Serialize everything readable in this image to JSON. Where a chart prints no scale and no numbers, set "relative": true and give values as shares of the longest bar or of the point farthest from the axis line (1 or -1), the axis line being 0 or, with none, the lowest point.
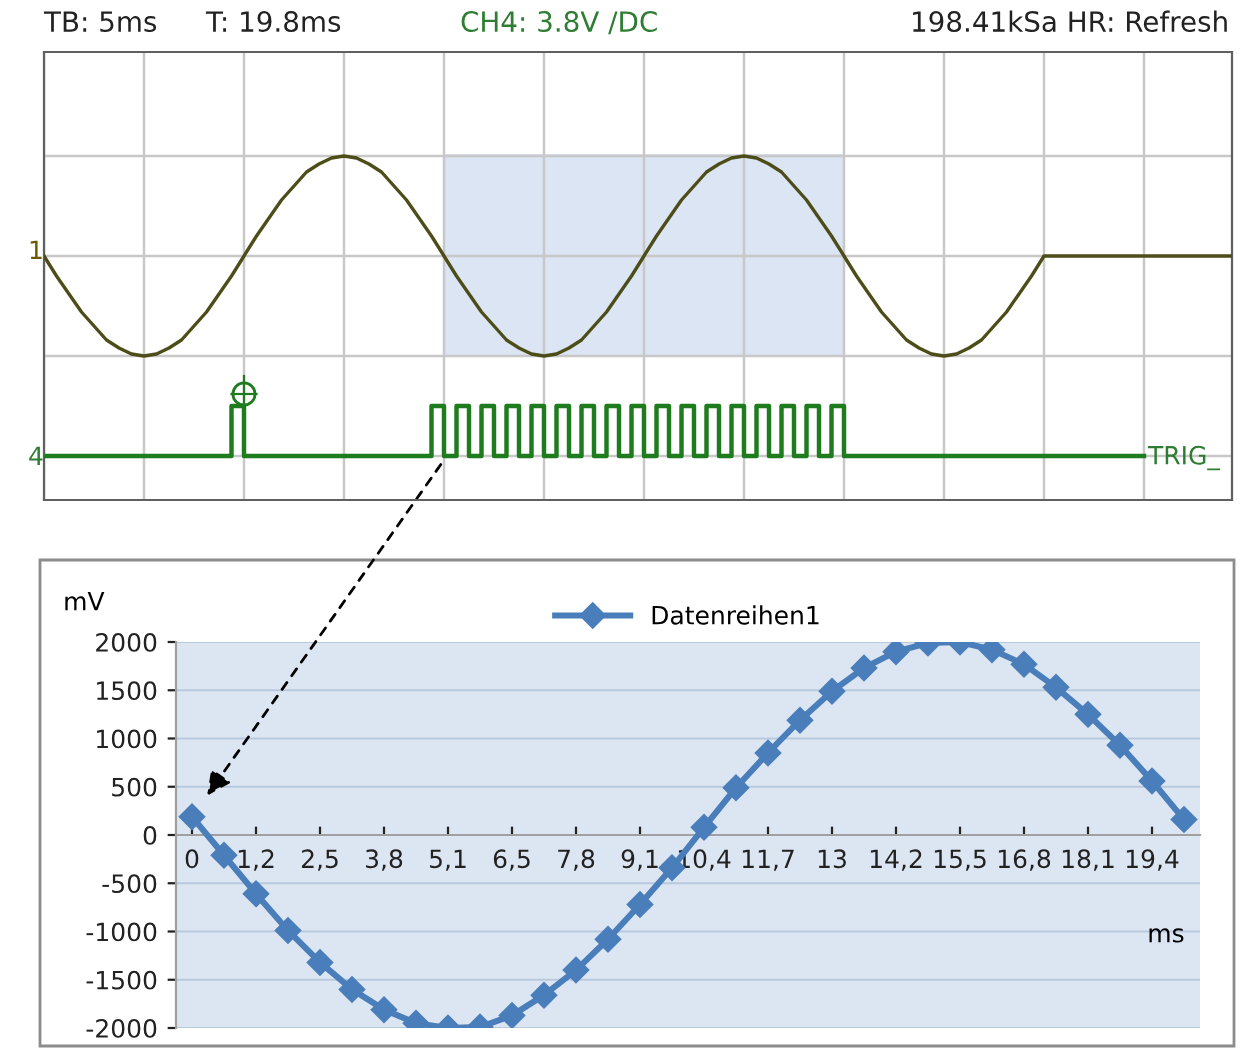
{
  "chart_data": [
    {
      "type": "line",
      "relative": true,
      "categories": [
        null,
        null,
        null,
        null,
        null,
        null,
        null,
        null,
        null,
        null,
        null,
        null,
        null,
        null,
        null,
        null,
        null,
        null,
        null,
        null,
        null,
        null,
        null,
        null,
        null,
        null,
        null,
        null,
        null,
        null,
        null,
        null,
        null,
        null,
        null,
        null,
        null,
        null,
        null,
        null,
        null,
        null,
        null,
        null,
        null,
        null,
        null,
        null,
        null,
        null,
        null,
        null,
        null,
        null,
        null,
        null,
        null,
        null,
        null,
        null,
        null,
        null,
        null,
        null,
        null,
        null,
        null,
        null,
        null,
        null,
        null,
        null,
        null,
        null,
        null,
        null,
        null,
        null,
        null,
        null,
        null,
        null,
        null,
        null,
        null,
        null,
        null,
        null,
        null,
        null,
        null,
        null,
        null,
        null,
        null,
        null
      ],
      "series": [
        {
          "color": "#4d4d1a",
          "values": [
            0,
            -0.1,
            -0.19,
            -0.28,
            -0.35,
            -0.42,
            -0.46,
            -0.49,
            -0.5,
            -0.49,
            -0.46,
            -0.42,
            -0.35,
            -0.28,
            -0.19,
            -0.1,
            0,
            0.1,
            0.19,
            0.28,
            0.35,
            0.42,
            0.46,
            0.49,
            0.5,
            0.49,
            0.46,
            0.42,
            0.35,
            0.28,
            0.19,
            0.1,
            0,
            -0.1,
            -0.19,
            -0.28,
            -0.35,
            -0.42,
            -0.46,
            -0.49,
            -0.5,
            -0.49,
            -0.46,
            -0.42,
            -0.35,
            -0.28,
            -0.19,
            -0.1,
            0,
            0.1,
            0.19,
            0.28,
            0.35,
            0.42,
            0.46,
            0.49,
            0.5,
            0.49,
            0.46,
            0.42,
            0.35,
            0.28,
            0.19,
            0.1,
            0,
            -0.1,
            -0.19,
            -0.28,
            -0.35,
            -0.42,
            -0.46,
            -0.49,
            -0.5,
            -0.49,
            -0.46,
            -0.42,
            -0.35,
            -0.28,
            -0.19,
            -0.1,
            0,
            0,
            0,
            0,
            0,
            0,
            0,
            0,
            0,
            0,
            0,
            0,
            0,
            0,
            0,
            0
          ]
        },
        {
          "type": "step",
          "color": "#1e7b1e",
          "values": [
            -1,
            -1,
            -1,
            -1,
            -1,
            -1,
            -1,
            -1,
            -1,
            -1,
            -1,
            -1,
            -1,
            -1,
            -1,
            -1,
            -0.75,
            -1,
            -1,
            -1,
            -1,
            -1,
            -1,
            -1,
            -1,
            -1,
            -1,
            -1,
            -1,
            -1,
            -1,
            -1,
            -0.75,
            -1,
            -0.75,
            -1,
            -0.75,
            -1,
            -0.75,
            -1,
            -0.75,
            -1,
            -0.75,
            -1,
            -0.75,
            -1,
            -0.75,
            -1,
            -0.75,
            -1,
            -0.75,
            -1,
            -0.75,
            -1,
            -0.75,
            -1,
            -0.75,
            -1,
            -0.75,
            -1,
            -0.75,
            -1,
            -0.75,
            -1,
            -0.75,
            -1,
            -1,
            -1,
            -1,
            -1,
            -1,
            -1,
            -1,
            -1,
            -1,
            -1,
            -1,
            -1,
            -1,
            -1,
            -1,
            -1,
            -1,
            -1,
            -1,
            -1,
            -1,
            -1,
            -1,
            null,
            null,
            null,
            null,
            null,
            null,
            null
          ]
        }
      ],
      "annotations": [
        "TB: 5ms",
        "T: 19.8ms",
        "CH4: 3.8V /DC",
        "198.41kSa HR: Refresh",
        "1",
        "4",
        "TRIG_"
      ],
      "grid": true,
      "tick_labels": false
    },
    {
      "type": "line",
      "categories": [
        "0",
        null,
        "1,2",
        null,
        "2,5",
        null,
        "3,8",
        null,
        "5,1",
        null,
        "6,5",
        null,
        "7,8",
        null,
        "9,1",
        null,
        "10,4",
        null,
        "11,7",
        null,
        "13",
        null,
        "14,2",
        null,
        "15,5",
        null,
        "16,8",
        null,
        "18,1",
        null,
        "19,4",
        null
      ],
      "series": [
        {
          "name": "Datenreihen1",
          "color": "#4a7ebb",
          "values": [
            190,
            -210,
            -610,
            -990,
            -1320,
            -1600,
            -1810,
            -1950,
            -2000,
            -1990,
            -1870,
            -1660,
            -1400,
            -1080,
            -720,
            -340,
            80,
            490,
            850,
            1190,
            1490,
            1730,
            1900,
            1990,
            2000,
            1920,
            1770,
            1530,
            1250,
            930,
            560,
            160
          ]
        }
      ],
      "ylim": [
        -2000,
        2000
      ],
      "yticks": [
        -2000,
        -1500,
        -1000,
        -500,
        0,
        500,
        1000,
        1500,
        2000
      ],
      "ylabel": "mV",
      "xlabel": "ms",
      "grid": "y",
      "legend": "top",
      "marker": "diamond"
    }
  ]
}
